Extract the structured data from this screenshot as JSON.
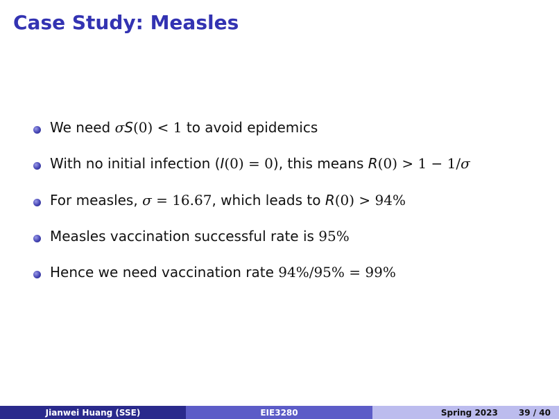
{
  "title": "Case Study: Measles",
  "bullets": [
    {
      "pre": "We need ",
      "sigma": "σ",
      "s": "S",
      "arg": "(0) < 1",
      "post": " to avoid epidemics"
    },
    {
      "pre": "With no initial infection (",
      "i": "I",
      "eq": "(0) = 0",
      "mid": "), this means ",
      "r": "R",
      "rel": "(0) > 1 − 1/",
      "sigma": "σ"
    },
    {
      "pre": "For measles, ",
      "sigma": "σ",
      "val": " = 16.67",
      "mid": ", which leads to ",
      "r": "R",
      "rel": "(0) > 94%"
    },
    {
      "pre": "Measles vaccination successful rate is ",
      "val": "95%"
    },
    {
      "pre": "Hence we need vaccination rate ",
      "val": "94%/95% = 99%"
    }
  ],
  "footer": {
    "author": "Jianwei Huang (SSE)",
    "course": "EIE3280",
    "semester": "Spring 2023",
    "page": "39 / 40"
  }
}
